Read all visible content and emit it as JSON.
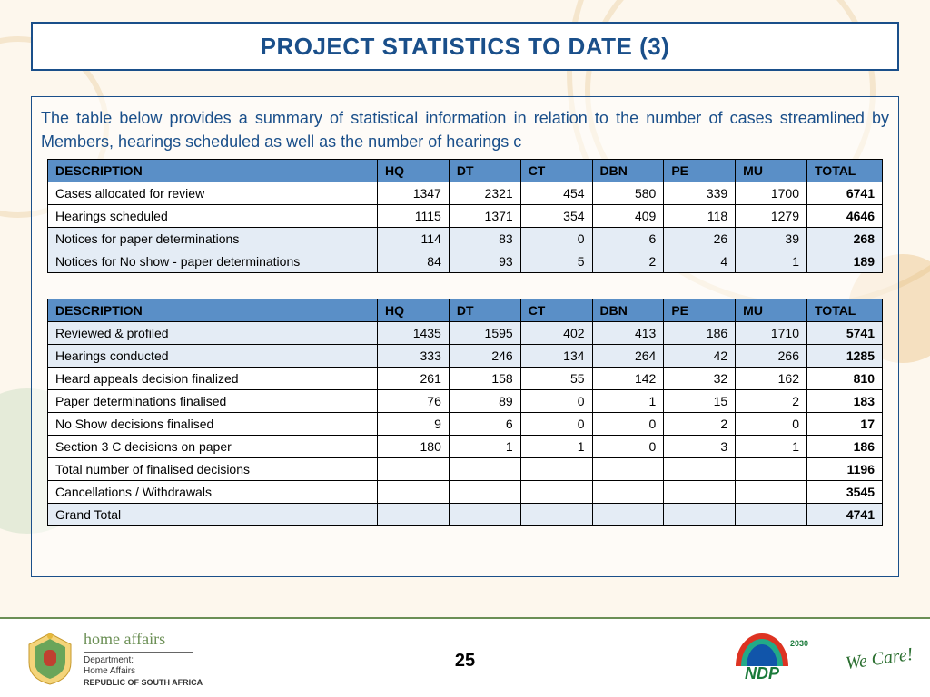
{
  "title": "PROJECT STATISTICS TO DATE (3)",
  "intro": "The table below provides a summary of statistical information in relation to the number of cases streamlined by Members, hearings scheduled as well as the number of hearings c",
  "columns": [
    "DESCRIPTION",
    "HQ",
    "DT",
    "CT",
    "DBN",
    "PE",
    "MU",
    "TOTAL"
  ],
  "table1_rows": [
    {
      "alt": false,
      "desc": "Cases allocated for review",
      "hq": "1347",
      "dt": "2321",
      "ct": "454",
      "dbn": "580",
      "pe": "339",
      "mu": "1700",
      "total": "6741"
    },
    {
      "alt": false,
      "desc": "Hearings scheduled",
      "hq": "1115",
      "dt": "1371",
      "ct": "354",
      "dbn": "409",
      "pe": "118",
      "mu": "1279",
      "total": "4646"
    },
    {
      "alt": true,
      "desc": "Notices for paper determinations",
      "hq": "114",
      "dt": "83",
      "ct": "0",
      "dbn": "6",
      "pe": "26",
      "mu": "39",
      "total": "268"
    },
    {
      "alt": true,
      "desc": "Notices for No show - paper determinations",
      "hq": "84",
      "dt": "93",
      "ct": "5",
      "dbn": "2",
      "pe": "4",
      "mu": "1",
      "total": "189"
    }
  ],
  "table2_rows": [
    {
      "alt": true,
      "desc": "Reviewed & profiled",
      "hq": "1435",
      "dt": "1595",
      "ct": "402",
      "dbn": "413",
      "pe": "186",
      "mu": "1710",
      "total": "5741"
    },
    {
      "alt": true,
      "desc": "Hearings conducted",
      "hq": "333",
      "dt": "246",
      "ct": "134",
      "dbn": "264",
      "pe": "42",
      "mu": "266",
      "total": "1285"
    },
    {
      "alt": false,
      "desc": "Heard appeals decision finalized",
      "hq": "261",
      "dt": "158",
      "ct": "55",
      "dbn": "142",
      "pe": "32",
      "mu": "162",
      "total": "810"
    },
    {
      "alt": false,
      "desc": "Paper determinations finalised",
      "hq": "76",
      "dt": "89",
      "ct": "0",
      "dbn": "1",
      "pe": "15",
      "mu": "2",
      "total": "183"
    },
    {
      "alt": false,
      "desc": "No Show decisions finalised",
      "hq": "9",
      "dt": "6",
      "ct": "0",
      "dbn": "0",
      "pe": "2",
      "mu": "0",
      "total": "17"
    },
    {
      "alt": false,
      "desc": "Section 3 C decisions on paper",
      "hq": "180",
      "dt": "1",
      "ct": "1",
      "dbn": "0",
      "pe": "3",
      "mu": "1",
      "total": "186"
    },
    {
      "alt": false,
      "desc": "Total number of finalised decisions",
      "hq": "",
      "dt": "",
      "ct": "",
      "dbn": "",
      "pe": "",
      "mu": "",
      "total": "1196"
    },
    {
      "alt": false,
      "desc": "Cancellations / Withdrawals",
      "hq": "",
      "dt": "",
      "ct": "",
      "dbn": "",
      "pe": "",
      "mu": "",
      "total": "3545"
    },
    {
      "alt": true,
      "desc": "Grand Total",
      "hq": "",
      "dt": "",
      "ct": "",
      "dbn": "",
      "pe": "",
      "mu": "",
      "total": "4741"
    }
  ],
  "page_number": "25",
  "dept": {
    "name": "home affairs",
    "l1": "Department:",
    "l2": "Home Affairs",
    "l3": "REPUBLIC OF SOUTH AFRICA"
  },
  "ndp": {
    "label": "NDP",
    "year": "2030"
  },
  "wecare": "We Care!",
  "colors": {
    "header_bg": "#5a8fc7",
    "alt_row_bg": "#e4ecf5",
    "border": "#1a4f8a",
    "title_text": "#1a4f8a"
  }
}
